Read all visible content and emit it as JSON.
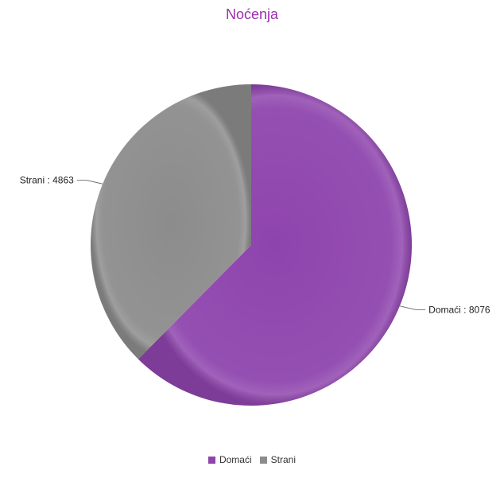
{
  "chart_data": {
    "type": "pie",
    "title": "Noćenja",
    "slices": [
      {
        "label": "Domaći",
        "value": 8076,
        "color": "#8e44ad"
      },
      {
        "label": "Strani",
        "value": 4863,
        "color": "#8c8c8c"
      }
    ],
    "legend": {
      "position": "bottom"
    },
    "label_separator": " : ",
    "title_color": "#9b2fae"
  }
}
